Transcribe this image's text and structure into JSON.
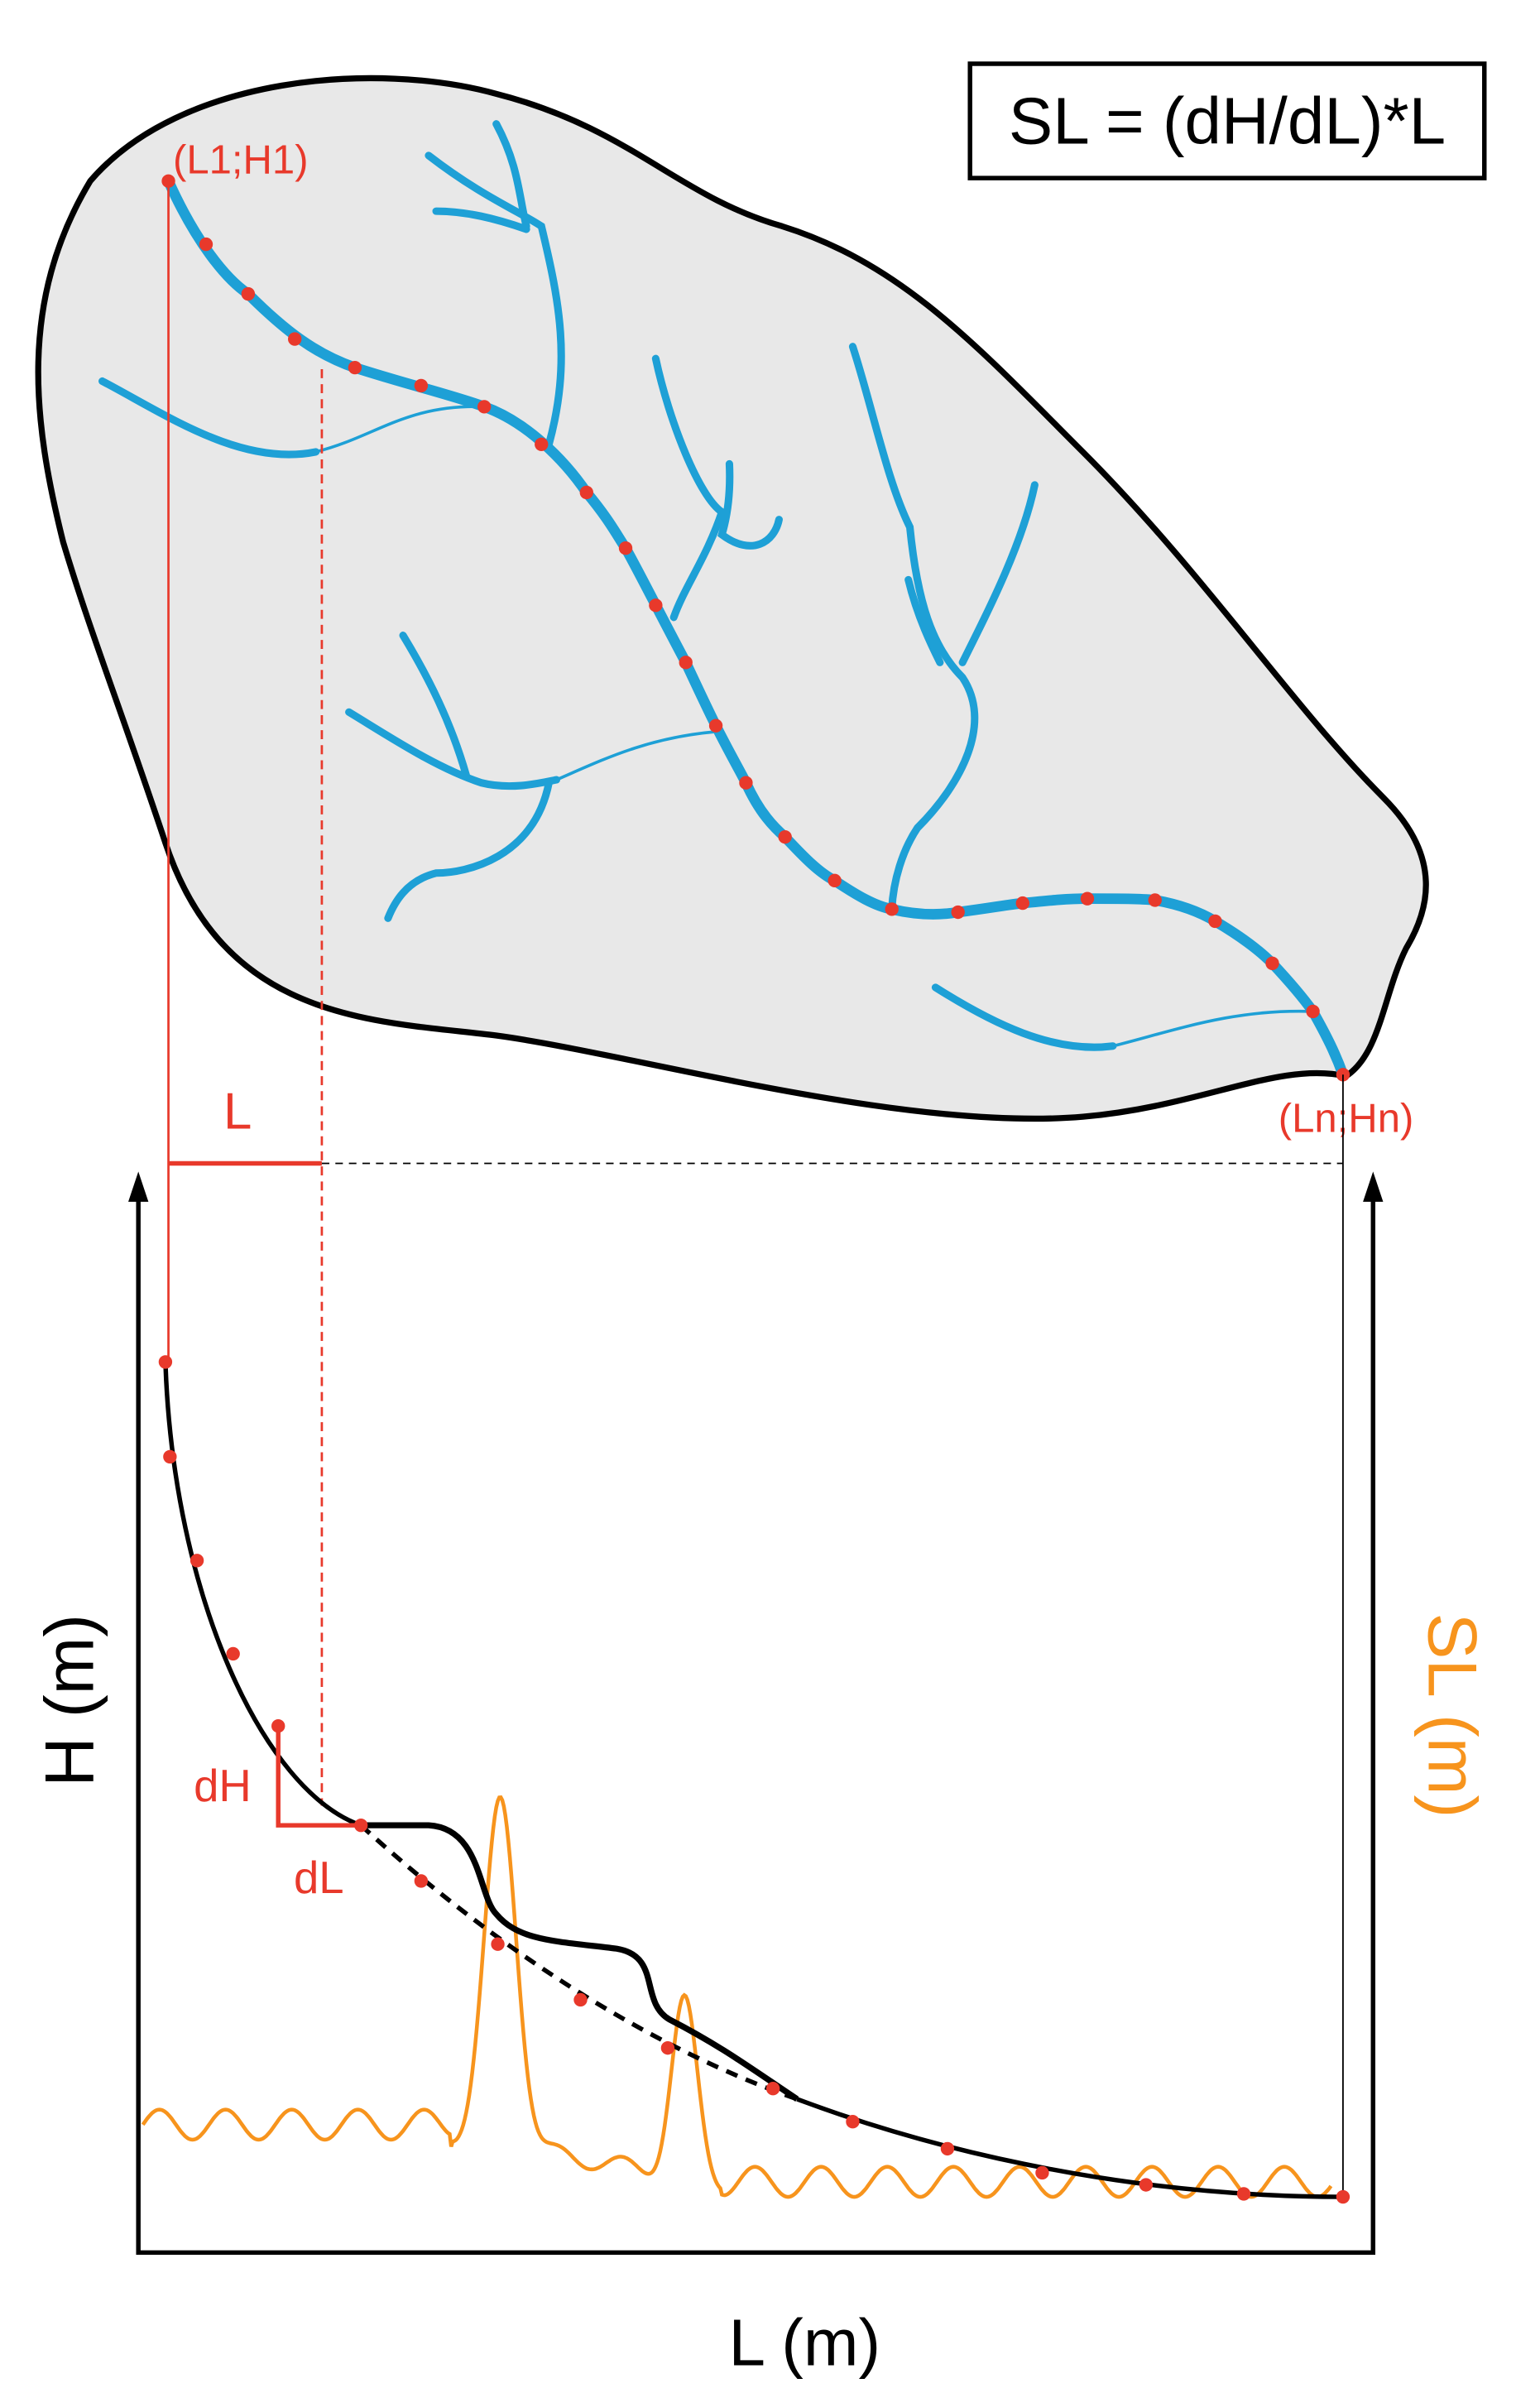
{
  "formula": "SL = (dH/dL)*L",
  "start_label": "(L1;H1)",
  "end_label": "(Ln;Hn)",
  "length_label": "L",
  "dh_label": "dH",
  "dl_label": "dL",
  "y_axis_label": "H (m)",
  "y2_axis_label": "SL (m)",
  "x_axis_label": "L (m)"
}
